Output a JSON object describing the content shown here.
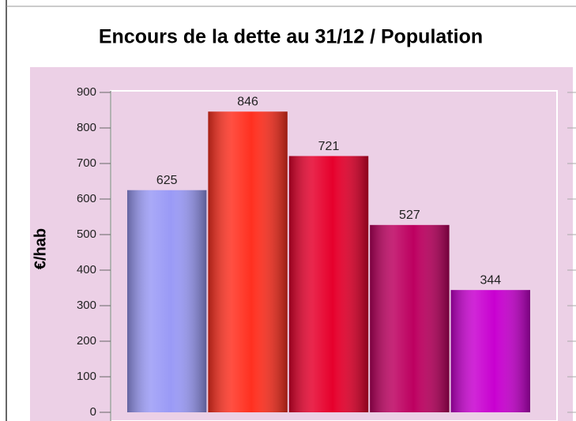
{
  "chart_data": {
    "type": "bar",
    "title": "Encours de la dette au 31/12 / Population",
    "y_label": "€/hab",
    "categories": [
      null,
      null,
      null,
      null,
      null
    ],
    "values": [
      625,
      846,
      721,
      527,
      344
    ],
    "colors": [
      "#9a9af6",
      "#ff3020",
      "#e6002c",
      "#bd0060",
      "#c800d0"
    ],
    "ylim": [
      0,
      900
    ],
    "yticks": [
      0,
      100,
      200,
      300,
      400,
      500,
      600,
      700,
      800,
      900
    ]
  }
}
